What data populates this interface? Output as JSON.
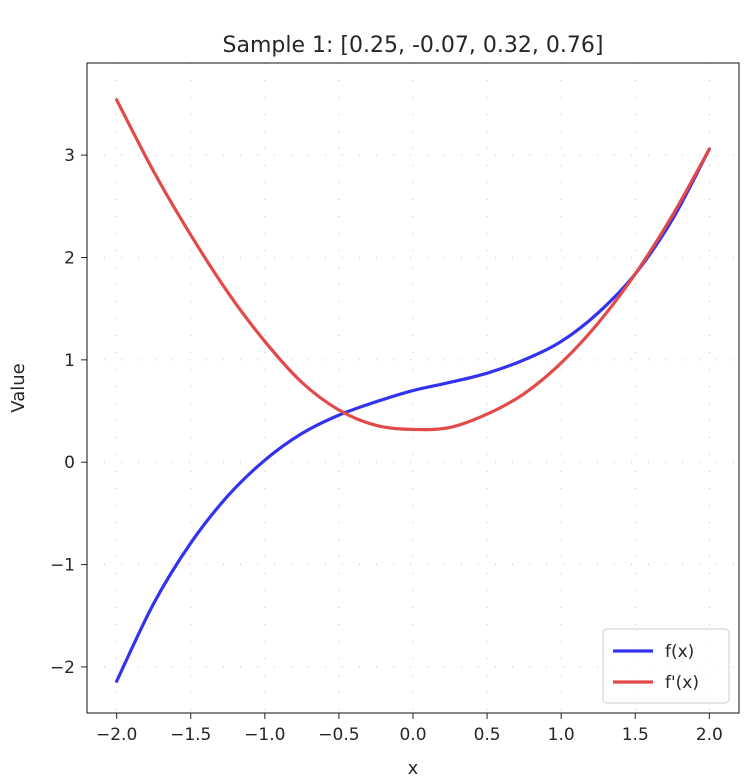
{
  "chart_data": {
    "type": "line",
    "title": "Sample 1: [0.25, -0.07, 0.32, 0.76]",
    "xlabel": "x",
    "ylabel": "Value",
    "xlim": [
      -2.2,
      2.2
    ],
    "ylim": [
      -2.45,
      3.9
    ],
    "x_ticks": [
      -2.0,
      -1.5,
      -1.0,
      -0.5,
      0.0,
      0.5,
      1.0,
      1.5,
      2.0
    ],
    "x_tick_labels": [
      "−2.0",
      "−1.5",
      "−1.0",
      "−0.5",
      "0.0",
      "0.5",
      "1.0",
      "1.5",
      "2.0"
    ],
    "y_ticks": [
      -2,
      -1,
      0,
      1,
      2,
      3
    ],
    "y_tick_labels": [
      "−2",
      "−1",
      "0",
      "1",
      "2",
      "3"
    ],
    "grid": "dotted",
    "legend_position": "bottom-right",
    "series": [
      {
        "name": "f(x)",
        "color": "#3333ee",
        "x": [
          -2.0,
          -1.75,
          -1.5,
          -1.25,
          -1.0,
          -0.75,
          -0.5,
          -0.25,
          0.0,
          0.25,
          0.5,
          0.75,
          1.0,
          1.25,
          1.5,
          1.75,
          2.0
        ],
        "y": [
          -2.14,
          -1.38,
          -0.79,
          -0.33,
          0.02,
          0.28,
          0.46,
          0.59,
          0.7,
          0.78,
          0.87,
          1.0,
          1.18,
          1.46,
          1.84,
          2.37,
          3.06
        ]
      },
      {
        "name": "f'(x)",
        "color": "#e24a4a",
        "x": [
          -2.0,
          -1.75,
          -1.5,
          -1.25,
          -1.0,
          -0.75,
          -0.5,
          -0.25,
          0.0,
          0.25,
          0.5,
          0.75,
          1.0,
          1.25,
          1.5,
          1.75,
          2.0
        ],
        "y": [
          3.54,
          2.84,
          2.22,
          1.66,
          1.18,
          0.78,
          0.51,
          0.36,
          0.32,
          0.34,
          0.47,
          0.67,
          0.97,
          1.36,
          1.84,
          2.41,
          3.06
        ]
      }
    ]
  }
}
